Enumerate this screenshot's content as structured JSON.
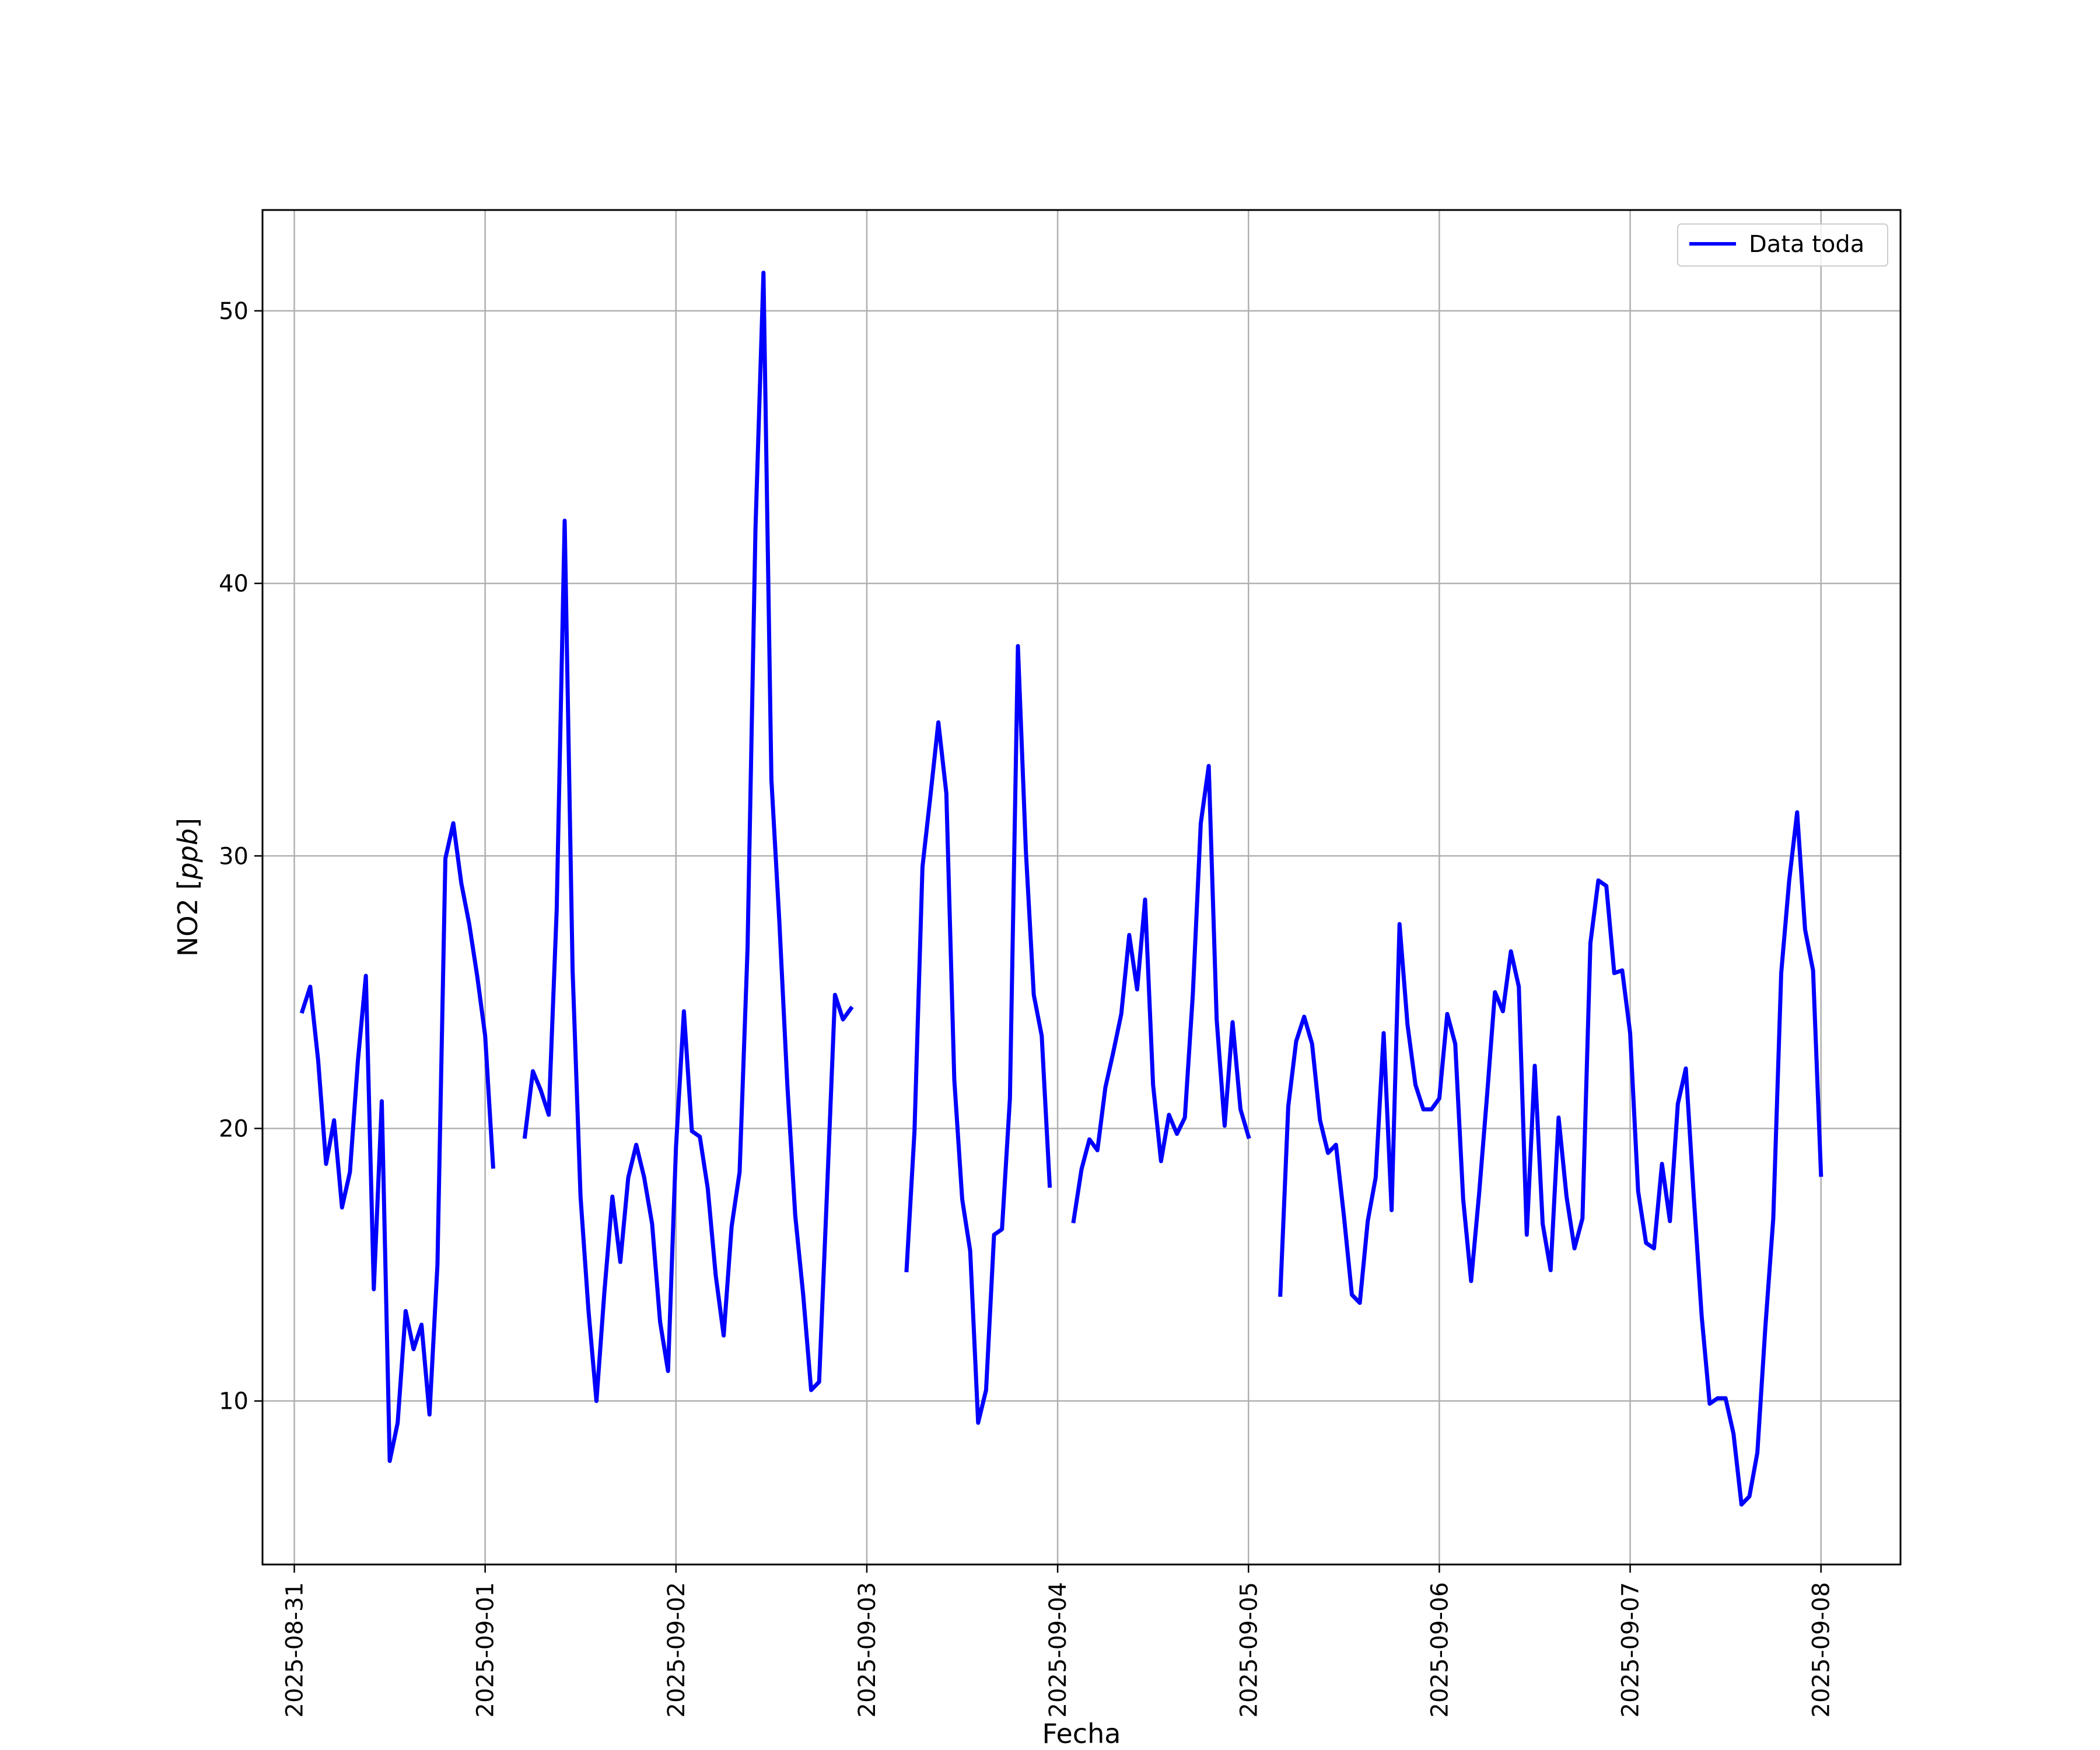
{
  "chart_data": {
    "type": "line",
    "xlabel": "Fecha",
    "ylabel": "NO2 [ppb]",
    "ylabel_parts": {
      "prefix": "NO2 [",
      "unit": "ppb",
      "suffix": "]"
    },
    "xlim": [
      "2025-08-30T20:00",
      "2025-09-08T10:00"
    ],
    "ylim": [
      4.0,
      53.7
    ],
    "yticks": [
      10,
      20,
      30,
      40,
      50
    ],
    "xticks": [
      "2025-08-31",
      "2025-09-01",
      "2025-09-02",
      "2025-09-03",
      "2025-09-04",
      "2025-09-05",
      "2025-09-06",
      "2025-09-07",
      "2025-09-08"
    ],
    "grid": true,
    "legend_position": "top-right",
    "colors": {
      "series": "#0000ff",
      "grid": "#b0b0b0",
      "axes": "#000000"
    },
    "series": [
      {
        "name": "Data toda",
        "segments": [
          [
            [
              "2025-08-31T01:00",
              24.3
            ],
            [
              "2025-08-31T02:00",
              25.2
            ],
            [
              "2025-08-31T03:00",
              22.5
            ],
            [
              "2025-08-31T04:00",
              18.7
            ],
            [
              "2025-08-31T05:00",
              20.3
            ],
            [
              "2025-08-31T06:00",
              17.1
            ],
            [
              "2025-08-31T07:00",
              18.4
            ],
            [
              "2025-08-31T08:00",
              22.5
            ],
            [
              "2025-08-31T09:00",
              25.6
            ],
            [
              "2025-08-31T10:00",
              14.1
            ],
            [
              "2025-08-31T11:00",
              21.0
            ],
            [
              "2025-08-31T12:00",
              7.8
            ],
            [
              "2025-08-31T13:00",
              9.2
            ],
            [
              "2025-08-31T14:00",
              13.3
            ],
            [
              "2025-08-31T15:00",
              11.9
            ],
            [
              "2025-08-31T16:00",
              12.8
            ],
            [
              "2025-08-31T17:00",
              9.5
            ],
            [
              "2025-08-31T18:00",
              15.0
            ],
            [
              "2025-08-31T19:00",
              29.9
            ],
            [
              "2025-08-31T20:00",
              31.2
            ],
            [
              "2025-08-31T21:00",
              29.0
            ],
            [
              "2025-08-31T22:00",
              27.5
            ],
            [
              "2025-08-31T23:00",
              25.6
            ],
            [
              "2025-09-01T00:00",
              23.4
            ],
            [
              "2025-09-01T01:00",
              18.6
            ]
          ],
          [
            [
              "2025-09-01T05:00",
              19.7
            ],
            [
              "2025-09-01T06:00",
              22.1
            ],
            [
              "2025-09-01T07:00",
              21.4
            ],
            [
              "2025-09-01T08:00",
              20.5
            ],
            [
              "2025-09-01T09:00",
              28.0
            ],
            [
              "2025-09-01T10:00",
              42.3
            ],
            [
              "2025-09-01T11:00",
              25.8
            ],
            [
              "2025-09-01T12:00",
              17.5
            ],
            [
              "2025-09-01T13:00",
              13.3
            ],
            [
              "2025-09-01T14:00",
              10.0
            ],
            [
              "2025-09-01T15:00",
              14.0
            ],
            [
              "2025-09-01T16:00",
              17.5
            ],
            [
              "2025-09-01T17:00",
              15.1
            ],
            [
              "2025-09-01T18:00",
              18.2
            ],
            [
              "2025-09-01T19:00",
              19.4
            ],
            [
              "2025-09-01T20:00",
              18.2
            ],
            [
              "2025-09-01T21:00",
              16.5
            ],
            [
              "2025-09-01T22:00",
              12.9
            ],
            [
              "2025-09-01T23:00",
              11.1
            ],
            [
              "2025-09-02T00:00",
              19.3
            ],
            [
              "2025-09-02T01:00",
              24.3
            ],
            [
              "2025-09-02T02:00",
              19.9
            ],
            [
              "2025-09-02T03:00",
              19.7
            ],
            [
              "2025-09-02T04:00",
              17.8
            ],
            [
              "2025-09-02T05:00",
              14.6
            ],
            [
              "2025-09-02T06:00",
              12.4
            ],
            [
              "2025-09-02T07:00",
              16.4
            ],
            [
              "2025-09-02T08:00",
              18.4
            ],
            [
              "2025-09-02T09:00",
              26.6
            ],
            [
              "2025-09-02T10:00",
              42.0
            ],
            [
              "2025-09-02T11:00",
              51.4
            ],
            [
              "2025-09-02T12:00",
              32.8
            ],
            [
              "2025-09-02T13:00",
              27.6
            ],
            [
              "2025-09-02T14:00",
              21.6
            ],
            [
              "2025-09-02T15:00",
              16.8
            ],
            [
              "2025-09-02T16:00",
              13.9
            ],
            [
              "2025-09-02T17:00",
              10.4
            ],
            [
              "2025-09-02T18:00",
              10.7
            ],
            [
              "2025-09-02T19:00",
              17.7
            ],
            [
              "2025-09-02T20:00",
              24.9
            ],
            [
              "2025-09-02T21:00",
              24.0
            ],
            [
              "2025-09-02T22:00",
              24.4
            ]
          ],
          [
            [
              "2025-09-03T05:00",
              14.8
            ],
            [
              "2025-09-03T06:00",
              19.9
            ],
            [
              "2025-09-03T07:00",
              29.6
            ],
            [
              "2025-09-03T08:00",
              32.2
            ],
            [
              "2025-09-03T09:00",
              34.9
            ],
            [
              "2025-09-03T10:00",
              32.3
            ],
            [
              "2025-09-03T11:00",
              21.8
            ],
            [
              "2025-09-03T12:00",
              17.4
            ],
            [
              "2025-09-03T13:00",
              15.5
            ],
            [
              "2025-09-03T14:00",
              9.2
            ],
            [
              "2025-09-03T15:00",
              10.4
            ],
            [
              "2025-09-03T16:00",
              16.1
            ],
            [
              "2025-09-03T17:00",
              16.3
            ],
            [
              "2025-09-03T18:00",
              21.1
            ],
            [
              "2025-09-03T19:00",
              37.7
            ],
            [
              "2025-09-03T20:00",
              30.2
            ],
            [
              "2025-09-03T21:00",
              24.9
            ],
            [
              "2025-09-03T22:00",
              23.4
            ],
            [
              "2025-09-03T23:00",
              17.9
            ]
          ],
          [
            [
              "2025-09-04T02:00",
              16.6
            ],
            [
              "2025-09-04T03:00",
              18.5
            ],
            [
              "2025-09-04T04:00",
              19.6
            ],
            [
              "2025-09-04T05:00",
              19.2
            ],
            [
              "2025-09-04T06:00",
              21.5
            ],
            [
              "2025-09-04T07:00",
              22.8
            ],
            [
              "2025-09-04T08:00",
              24.2
            ],
            [
              "2025-09-04T09:00",
              27.1
            ],
            [
              "2025-09-04T10:00",
              25.1
            ],
            [
              "2025-09-04T11:00",
              28.4
            ],
            [
              "2025-09-04T12:00",
              21.6
            ],
            [
              "2025-09-04T13:00",
              18.8
            ],
            [
              "2025-09-04T14:00",
              20.5
            ],
            [
              "2025-09-04T15:00",
              19.8
            ],
            [
              "2025-09-04T16:00",
              20.4
            ],
            [
              "2025-09-04T17:00",
              24.9
            ],
            [
              "2025-09-04T18:00",
              31.2
            ],
            [
              "2025-09-04T19:00",
              33.3
            ],
            [
              "2025-09-04T20:00",
              24.0
            ],
            [
              "2025-09-04T21:00",
              20.1
            ],
            [
              "2025-09-04T22:00",
              23.9
            ],
            [
              "2025-09-04T23:00",
              20.7
            ],
            [
              "2025-09-05T00:00",
              19.7
            ]
          ],
          [
            [
              "2025-09-05T04:00",
              13.9
            ],
            [
              "2025-09-05T05:00",
              20.8
            ],
            [
              "2025-09-05T06:00",
              23.2
            ],
            [
              "2025-09-05T07:00",
              24.1
            ],
            [
              "2025-09-05T08:00",
              23.1
            ],
            [
              "2025-09-05T09:00",
              20.3
            ],
            [
              "2025-09-05T10:00",
              19.1
            ],
            [
              "2025-09-05T11:00",
              19.4
            ],
            [
              "2025-09-05T12:00",
              16.8
            ],
            [
              "2025-09-05T13:00",
              13.9
            ],
            [
              "2025-09-05T14:00",
              13.6
            ],
            [
              "2025-09-05T15:00",
              16.6
            ],
            [
              "2025-09-05T16:00",
              18.2
            ],
            [
              "2025-09-05T17:00",
              23.5
            ],
            [
              "2025-09-05T18:00",
              17.0
            ],
            [
              "2025-09-05T19:00",
              27.5
            ],
            [
              "2025-09-05T20:00",
              23.8
            ],
            [
              "2025-09-05T21:00",
              21.6
            ],
            [
              "2025-09-05T22:00",
              20.7
            ],
            [
              "2025-09-05T23:00",
              20.7
            ],
            [
              "2025-09-06T00:00",
              21.1
            ],
            [
              "2025-09-06T01:00",
              24.2
            ],
            [
              "2025-09-06T02:00",
              23.1
            ],
            [
              "2025-09-06T03:00",
              17.4
            ],
            [
              "2025-09-06T04:00",
              14.4
            ],
            [
              "2025-09-06T05:00",
              17.6
            ],
            [
              "2025-09-06T06:00",
              21.2
            ],
            [
              "2025-09-06T07:00",
              25.0
            ],
            [
              "2025-09-06T08:00",
              24.3
            ],
            [
              "2025-09-06T09:00",
              26.5
            ],
            [
              "2025-09-06T10:00",
              25.2
            ],
            [
              "2025-09-06T11:00",
              16.1
            ],
            [
              "2025-09-06T12:00",
              22.3
            ],
            [
              "2025-09-06T13:00",
              16.5
            ],
            [
              "2025-09-06T14:00",
              14.8
            ],
            [
              "2025-09-06T15:00",
              20.4
            ],
            [
              "2025-09-06T16:00",
              17.5
            ],
            [
              "2025-09-06T17:00",
              15.6
            ],
            [
              "2025-09-06T18:00",
              16.7
            ],
            [
              "2025-09-06T19:00",
              26.8
            ],
            [
              "2025-09-06T20:00",
              29.1
            ],
            [
              "2025-09-06T21:00",
              28.9
            ],
            [
              "2025-09-06T22:00",
              25.7
            ],
            [
              "2025-09-06T23:00",
              25.8
            ],
            [
              "2025-09-07T00:00",
              23.5
            ],
            [
              "2025-09-07T01:00",
              17.7
            ],
            [
              "2025-09-07T02:00",
              15.8
            ],
            [
              "2025-09-07T03:00",
              15.6
            ],
            [
              "2025-09-07T04:00",
              18.7
            ],
            [
              "2025-09-07T05:00",
              16.6
            ],
            [
              "2025-09-07T06:00",
              20.9
            ],
            [
              "2025-09-07T07:00",
              22.2
            ],
            [
              "2025-09-07T08:00",
              17.5
            ],
            [
              "2025-09-07T09:00",
              13.1
            ],
            [
              "2025-09-07T10:00",
              9.9
            ],
            [
              "2025-09-07T11:00",
              10.1
            ],
            [
              "2025-09-07T12:00",
              10.1
            ],
            [
              "2025-09-07T13:00",
              8.8
            ],
            [
              "2025-09-07T14:00",
              6.2
            ],
            [
              "2025-09-07T15:00",
              6.5
            ],
            [
              "2025-09-07T16:00",
              8.1
            ],
            [
              "2025-09-07T17:00",
              12.7
            ],
            [
              "2025-09-07T18:00",
              16.7
            ],
            [
              "2025-09-07T19:00",
              25.7
            ],
            [
              "2025-09-07T20:00",
              29.1
            ],
            [
              "2025-09-07T21:00",
              31.6
            ],
            [
              "2025-09-07T22:00",
              27.3
            ],
            [
              "2025-09-07T23:00",
              25.8
            ],
            [
              "2025-09-08T00:00",
              18.3
            ]
          ]
        ]
      }
    ]
  }
}
